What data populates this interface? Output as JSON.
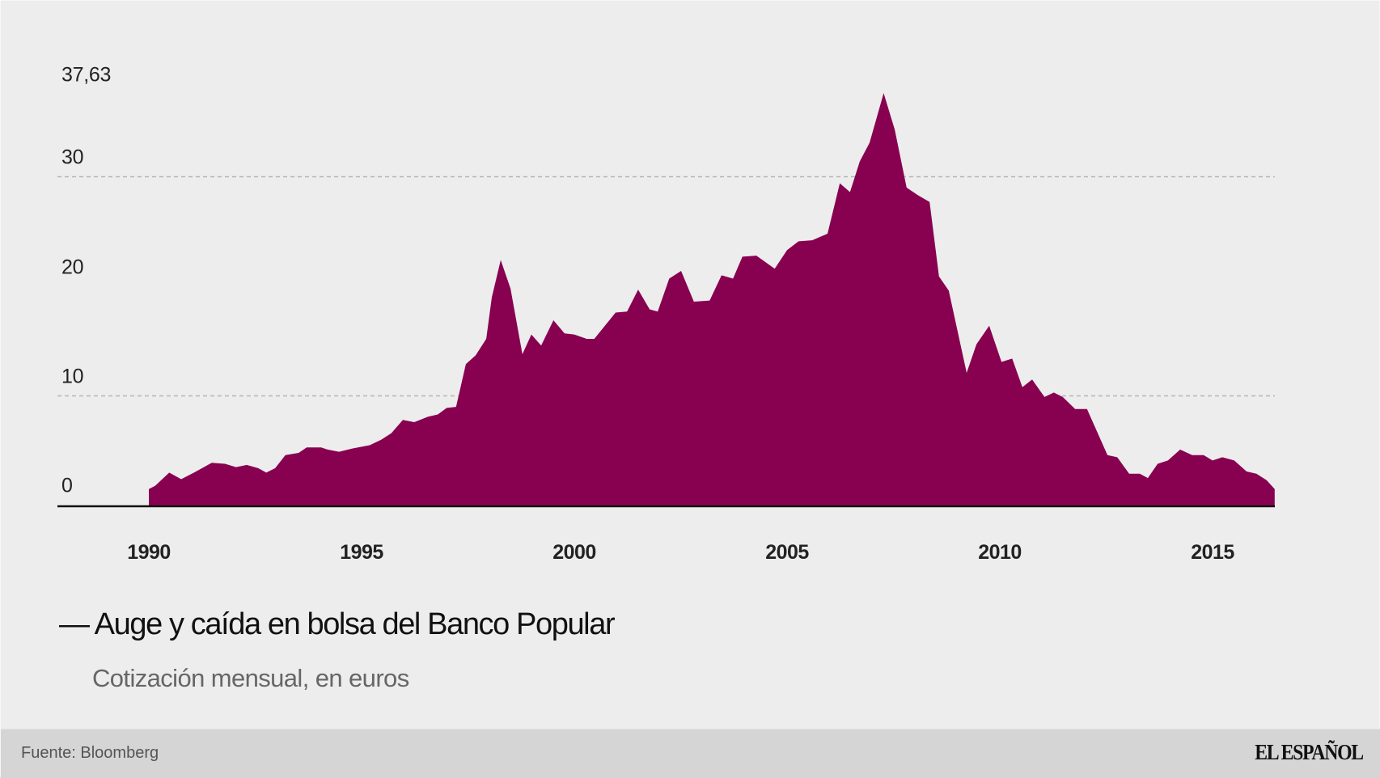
{
  "chart_data": {
    "type": "area",
    "title": "— Auge y caída en bolsa del Banco Popular",
    "subtitle": "Cotización mensual, en euros",
    "xlabel": "",
    "ylabel": "",
    "color": "#880050",
    "ylim": [
      0,
      37.63
    ],
    "xlim": [
      1990,
      2016.5
    ],
    "y_ticks": [
      {
        "value": 37.63,
        "label": "37,63",
        "gridline": false
      },
      {
        "value": 30,
        "label": "30",
        "gridline": true
      },
      {
        "value": 20,
        "label": "20",
        "gridline": false
      },
      {
        "value": 10,
        "label": "10",
        "gridline": true
      },
      {
        "value": 0,
        "label": "0",
        "gridline": false
      }
    ],
    "x_ticks": [
      {
        "value": 1990,
        "label": "1990"
      },
      {
        "value": 1995,
        "label": "1995"
      },
      {
        "value": 2000,
        "label": "2000"
      },
      {
        "value": 2005,
        "label": "2005"
      },
      {
        "value": 2010,
        "label": "2010"
      },
      {
        "value": 2015,
        "label": "2015"
      }
    ],
    "series": [
      {
        "name": "Banco Popular",
        "points": [
          [
            1990.0,
            1.5
          ],
          [
            1990.15,
            1.8
          ],
          [
            1990.48,
            3.0
          ],
          [
            1990.76,
            2.4
          ],
          [
            1991.06,
            3.0
          ],
          [
            1991.48,
            3.9
          ],
          [
            1991.79,
            3.8
          ],
          [
            1992.05,
            3.5
          ],
          [
            1992.3,
            3.7
          ],
          [
            1992.57,
            3.4
          ],
          [
            1992.76,
            3.0
          ],
          [
            1992.97,
            3.4
          ],
          [
            1993.21,
            4.6
          ],
          [
            1993.52,
            4.8
          ],
          [
            1993.71,
            5.3
          ],
          [
            1994.05,
            5.3
          ],
          [
            1994.2,
            5.1
          ],
          [
            1994.47,
            4.9
          ],
          [
            1994.79,
            5.2
          ],
          [
            1995.19,
            5.5
          ],
          [
            1995.46,
            6.0
          ],
          [
            1995.7,
            6.6
          ],
          [
            1995.97,
            7.8
          ],
          [
            1996.24,
            7.6
          ],
          [
            1996.56,
            8.1
          ],
          [
            1996.79,
            8.3
          ],
          [
            1997.0,
            8.9
          ],
          [
            1997.22,
            9.0
          ],
          [
            1997.45,
            12.9
          ],
          [
            1997.68,
            13.7
          ],
          [
            1997.93,
            15.2
          ],
          [
            1998.06,
            19.0
          ],
          [
            1998.27,
            22.4
          ],
          [
            1998.5,
            19.8
          ],
          [
            1998.78,
            13.8
          ],
          [
            1998.99,
            15.6
          ],
          [
            1999.22,
            14.6
          ],
          [
            1999.51,
            16.9
          ],
          [
            1999.77,
            15.7
          ],
          [
            2000.0,
            15.6
          ],
          [
            2000.29,
            15.2
          ],
          [
            2000.47,
            15.2
          ],
          [
            2000.97,
            17.6
          ],
          [
            2001.24,
            17.7
          ],
          [
            2001.5,
            19.7
          ],
          [
            2001.77,
            17.9
          ],
          [
            2001.96,
            17.7
          ],
          [
            2002.23,
            20.7
          ],
          [
            2002.51,
            21.4
          ],
          [
            2002.81,
            18.6
          ],
          [
            2003.18,
            18.7
          ],
          [
            2003.46,
            21.0
          ],
          [
            2003.73,
            20.7
          ],
          [
            2003.95,
            22.7
          ],
          [
            2004.28,
            22.8
          ],
          [
            2004.71,
            21.6
          ],
          [
            2005.0,
            23.3
          ],
          [
            2005.27,
            24.1
          ],
          [
            2005.59,
            24.2
          ],
          [
            2005.95,
            24.8
          ],
          [
            2006.24,
            29.4
          ],
          [
            2006.48,
            28.6
          ],
          [
            2006.71,
            31.4
          ],
          [
            2006.94,
            33.1
          ],
          [
            2007.27,
            37.63
          ],
          [
            2007.53,
            34.3
          ],
          [
            2007.81,
            29.0
          ],
          [
            2008.08,
            28.3
          ],
          [
            2008.35,
            27.7
          ],
          [
            2008.57,
            20.9
          ],
          [
            2008.8,
            19.6
          ],
          [
            2009.22,
            12.1
          ],
          [
            2009.45,
            14.7
          ],
          [
            2009.75,
            16.4
          ],
          [
            2010.04,
            13.1
          ],
          [
            2010.29,
            13.4
          ],
          [
            2010.53,
            10.8
          ],
          [
            2010.76,
            11.5
          ],
          [
            2011.05,
            9.9
          ],
          [
            2011.27,
            10.3
          ],
          [
            2011.48,
            9.9
          ],
          [
            2011.77,
            8.8
          ],
          [
            2012.05,
            8.8
          ],
          [
            2012.53,
            4.6
          ],
          [
            2012.76,
            4.4
          ],
          [
            2013.04,
            2.9
          ],
          [
            2013.29,
            2.9
          ],
          [
            2013.48,
            2.5
          ],
          [
            2013.71,
            3.8
          ],
          [
            2013.95,
            4.1
          ],
          [
            2014.24,
            5.1
          ],
          [
            2014.52,
            4.6
          ],
          [
            2014.79,
            4.6
          ],
          [
            2015.0,
            4.1
          ],
          [
            2015.23,
            4.4
          ],
          [
            2015.51,
            4.1
          ],
          [
            2015.8,
            3.1
          ],
          [
            2016.03,
            2.9
          ],
          [
            2016.27,
            2.3
          ],
          [
            2016.46,
            1.5
          ]
        ]
      }
    ],
    "grid": "horizontal dashed at 10 and 30",
    "legend": null
  },
  "header": {
    "title": "— Auge y caída en bolsa del Banco Popular",
    "subtitle": "Cotización mensual, en euros"
  },
  "footer": {
    "source": "Fuente: Bloomberg",
    "brand": "EL ESPAÑOL"
  },
  "colors": {
    "area": "#880050",
    "background": "#ededed",
    "footer_background": "#d5d5d5",
    "gridline": "#b5b5b5",
    "axis": "#111111"
  }
}
